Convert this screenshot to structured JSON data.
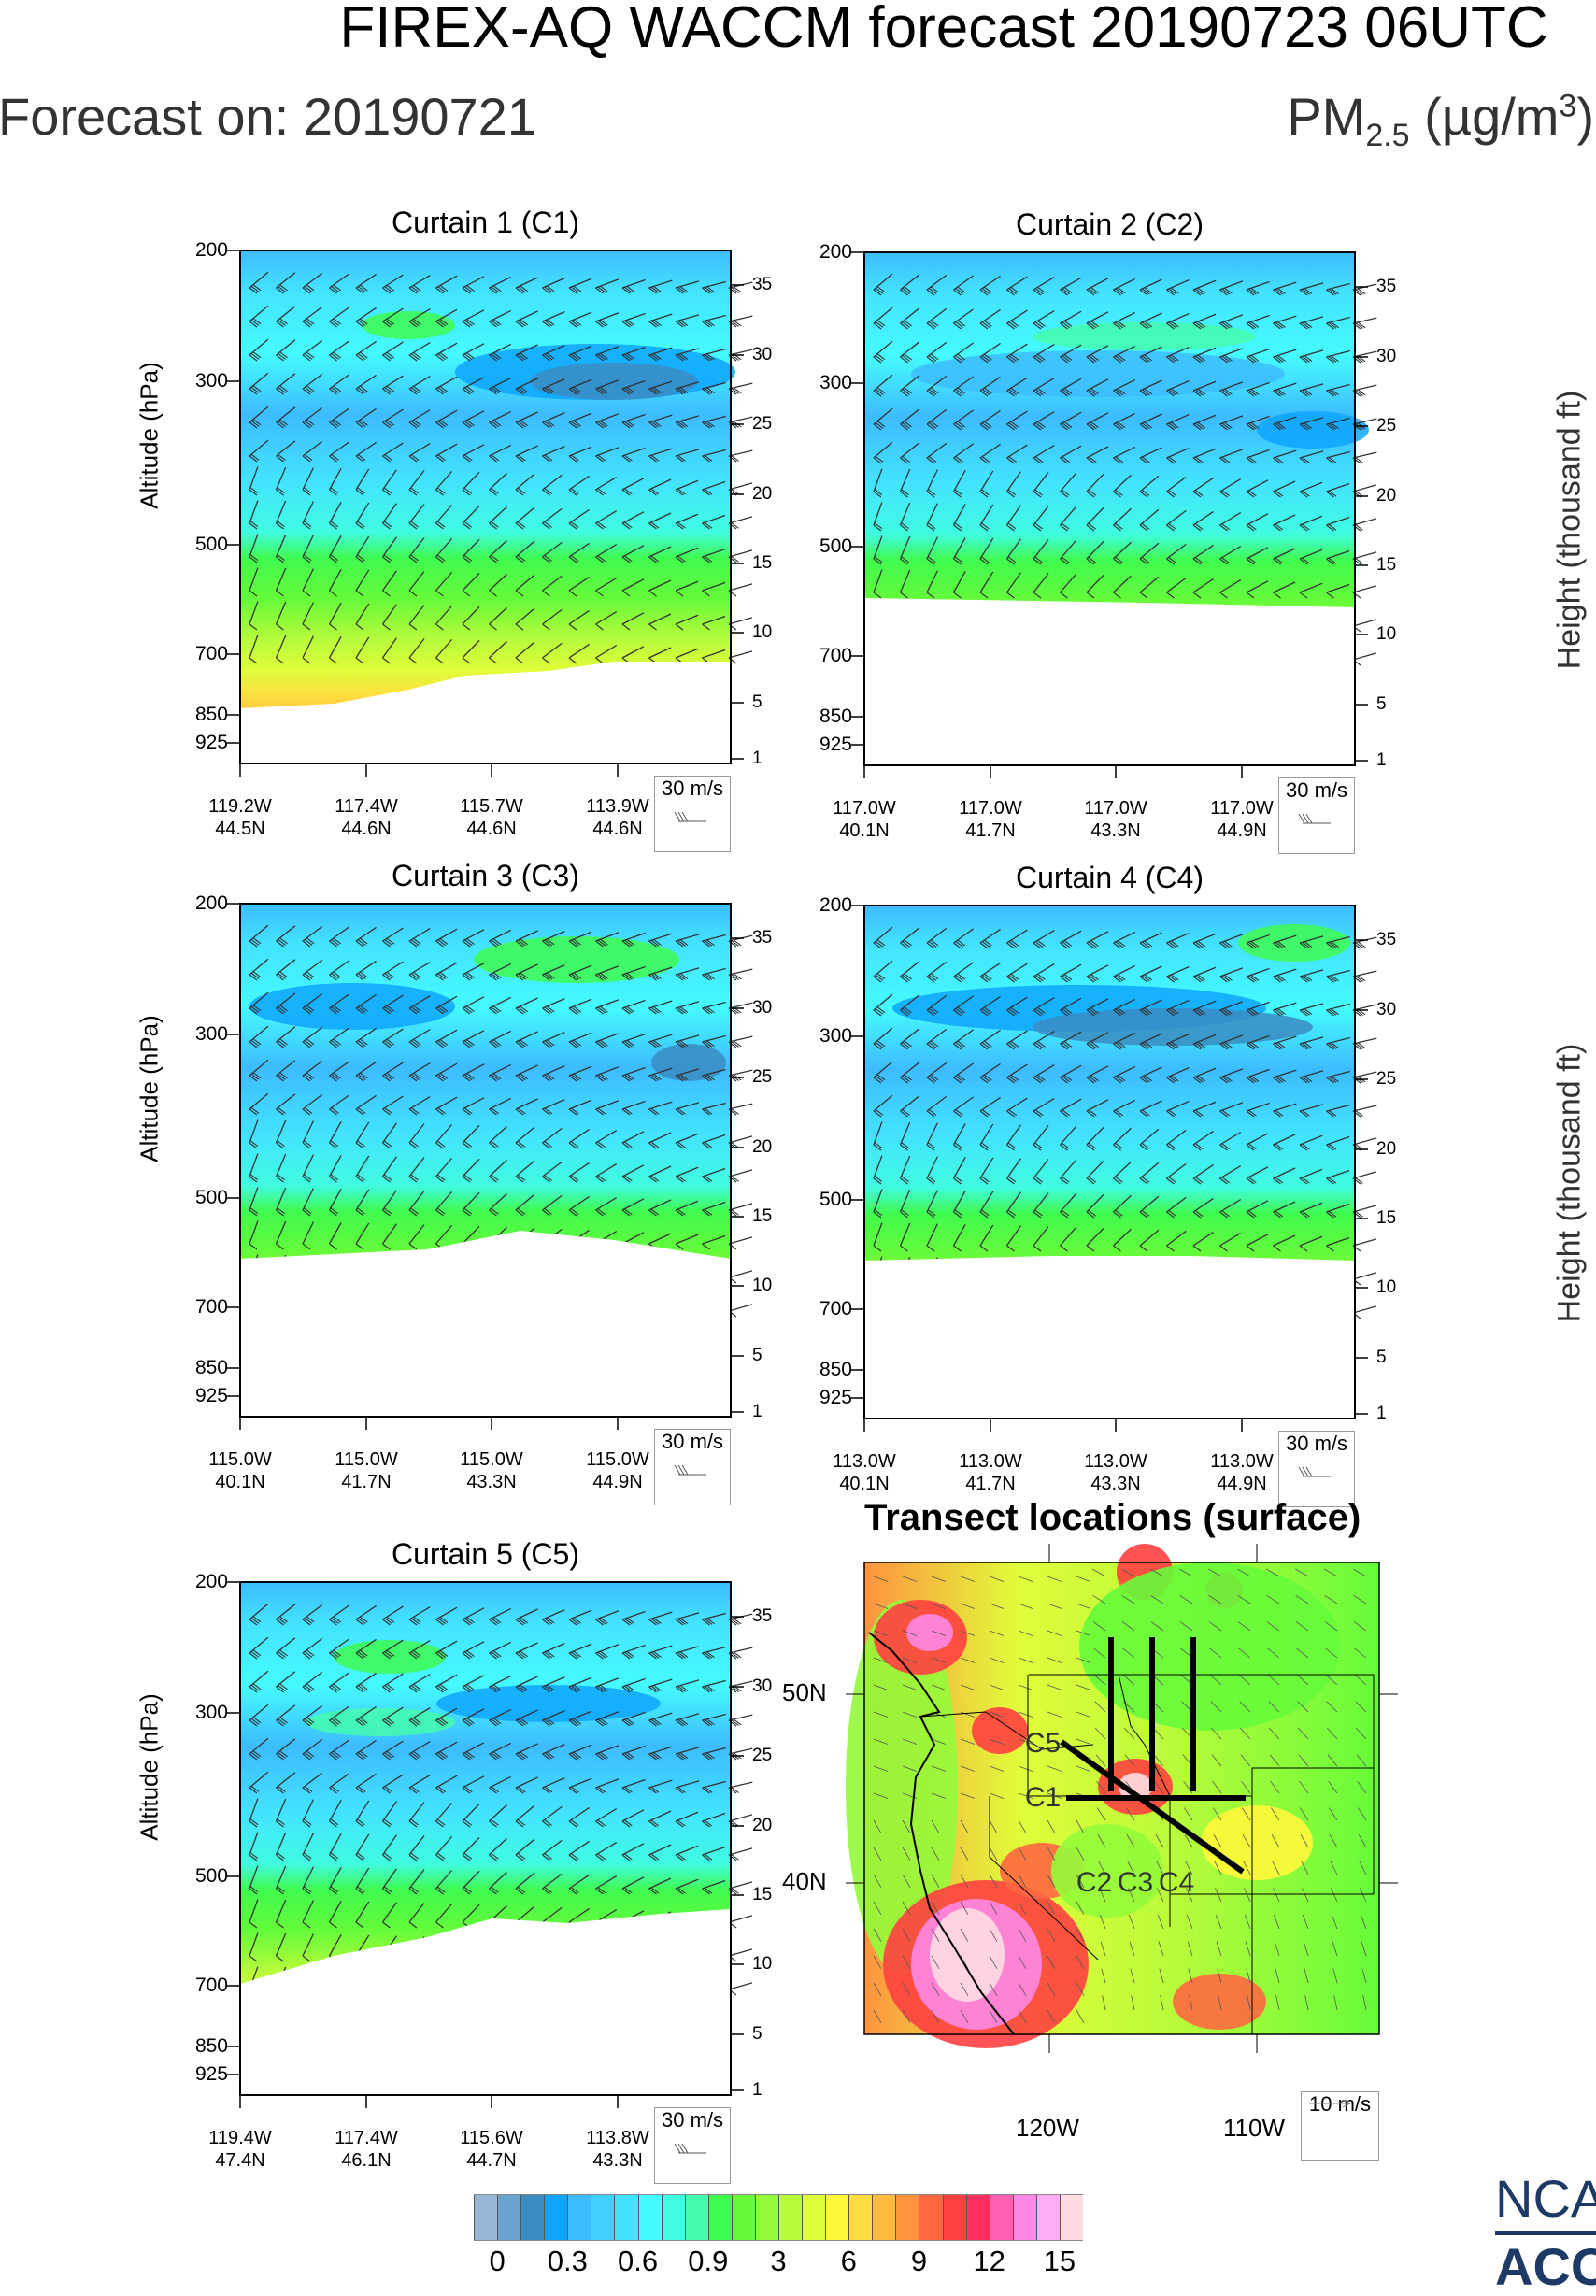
{
  "header": {
    "title": "FIREX-AQ WACCM forecast 20190723 06UTC",
    "forecast_on": "Forecast on: 20190721",
    "units_main": "PM",
    "units_sub": "2.5",
    "units_rest": " (µg/m",
    "units_sup": "3",
    "units_close": ")"
  },
  "axis_labels": {
    "left": "Altitude (hPa)",
    "right": "Height (thousand ft)"
  },
  "chart_data": [
    {
      "type": "heatmap",
      "title": "Curtain 1 (C1)",
      "ylabel": "Altitude (hPa)",
      "y2label": "Height (thousand ft)",
      "yticks": [
        "200",
        "300",
        "500",
        "700",
        "850",
        "925"
      ],
      "y2ticks": [
        "35",
        "30",
        "25",
        "20",
        "15",
        "10",
        "5",
        "1"
      ],
      "xticks": [
        [
          "119.2W",
          "44.5N"
        ],
        [
          "117.4W",
          "44.6N"
        ],
        [
          "115.7W",
          "44.6N"
        ],
        [
          "113.9W",
          "44.6N"
        ]
      ],
      "wind_legend": "30 m/s"
    },
    {
      "type": "heatmap",
      "title": "Curtain 2 (C2)",
      "ylabel": "",
      "y2label": "Height (thousand ft)",
      "yticks": [
        "200",
        "300",
        "500",
        "700",
        "850",
        "925"
      ],
      "y2ticks": [
        "35",
        "30",
        "25",
        "20",
        "15",
        "10",
        "5",
        "1"
      ],
      "xticks": [
        [
          "117.0W",
          "40.1N"
        ],
        [
          "117.0W",
          "41.7N"
        ],
        [
          "117.0W",
          "43.3N"
        ],
        [
          "117.0W",
          "44.9N"
        ]
      ],
      "wind_legend": "30 m/s"
    },
    {
      "type": "heatmap",
      "title": "Curtain 3 (C3)",
      "ylabel": "Altitude (hPa)",
      "y2label": "",
      "yticks": [
        "200",
        "300",
        "500",
        "700",
        "850",
        "925"
      ],
      "y2ticks": [
        "35",
        "30",
        "25",
        "20",
        "15",
        "10",
        "5",
        "1"
      ],
      "xticks": [
        [
          "115.0W",
          "40.1N"
        ],
        [
          "115.0W",
          "41.7N"
        ],
        [
          "115.0W",
          "43.3N"
        ],
        [
          "115.0W",
          "44.9N"
        ]
      ],
      "wind_legend": "30 m/s"
    },
    {
      "type": "heatmap",
      "title": "Curtain 4 (C4)",
      "ylabel": "",
      "y2label": "Height (thousand ft)",
      "yticks": [
        "200",
        "300",
        "500",
        "700",
        "850",
        "925"
      ],
      "y2ticks": [
        "35",
        "30",
        "25",
        "20",
        "15",
        "10",
        "5",
        "1"
      ],
      "xticks": [
        [
          "113.0W",
          "40.1N"
        ],
        [
          "113.0W",
          "41.7N"
        ],
        [
          "113.0W",
          "43.3N"
        ],
        [
          "113.0W",
          "44.9N"
        ]
      ],
      "wind_legend": "30 m/s"
    },
    {
      "type": "heatmap",
      "title": "Curtain 5 (C5)",
      "ylabel": "Altitude (hPa)",
      "y2label": "",
      "yticks": [
        "200",
        "300",
        "500",
        "700",
        "850",
        "925"
      ],
      "y2ticks": [
        "35",
        "30",
        "25",
        "20",
        "15",
        "10",
        "5",
        "1"
      ],
      "xticks": [
        [
          "119.4W",
          "47.4N"
        ],
        [
          "117.4W",
          "46.1N"
        ],
        [
          "115.6W",
          "44.7N"
        ],
        [
          "113.8W",
          "43.3N"
        ]
      ],
      "wind_legend": "30 m/s"
    },
    {
      "type": "heatmap",
      "title": "Transect locations (surface)",
      "lat_ticks": [
        "50N",
        "40N"
      ],
      "lon_ticks": [
        "120W",
        "110W"
      ],
      "transects": [
        "C1",
        "C2",
        "C3",
        "C4",
        "C5"
      ],
      "wind_legend": "10 m/s"
    }
  ],
  "colorbar": {
    "labels": [
      "0",
      "0.3",
      "0.6",
      "0.9",
      "3",
      "6",
      "9",
      "12",
      "15"
    ],
    "colors": [
      "#98b7d6",
      "#6aa4cf",
      "#3a8cc2",
      "#0ea5ff",
      "#3dbcff",
      "#41d0ff",
      "#43e3ff",
      "#45fbff",
      "#40fce0",
      "#44fcae",
      "#40fb4f",
      "#66fb3a",
      "#93fb3a",
      "#b9fb3a",
      "#e0fd3a",
      "#fff83a",
      "#ffdc3f",
      "#ffbb3f",
      "#ff9440",
      "#ff6841",
      "#ff4040",
      "#ff3060",
      "#ff60b0",
      "#ff88e6",
      "#ffaef5",
      "#ffdbe2"
    ]
  },
  "logo": {
    "line1": "NCAR",
    "line2": "ACOM"
  }
}
